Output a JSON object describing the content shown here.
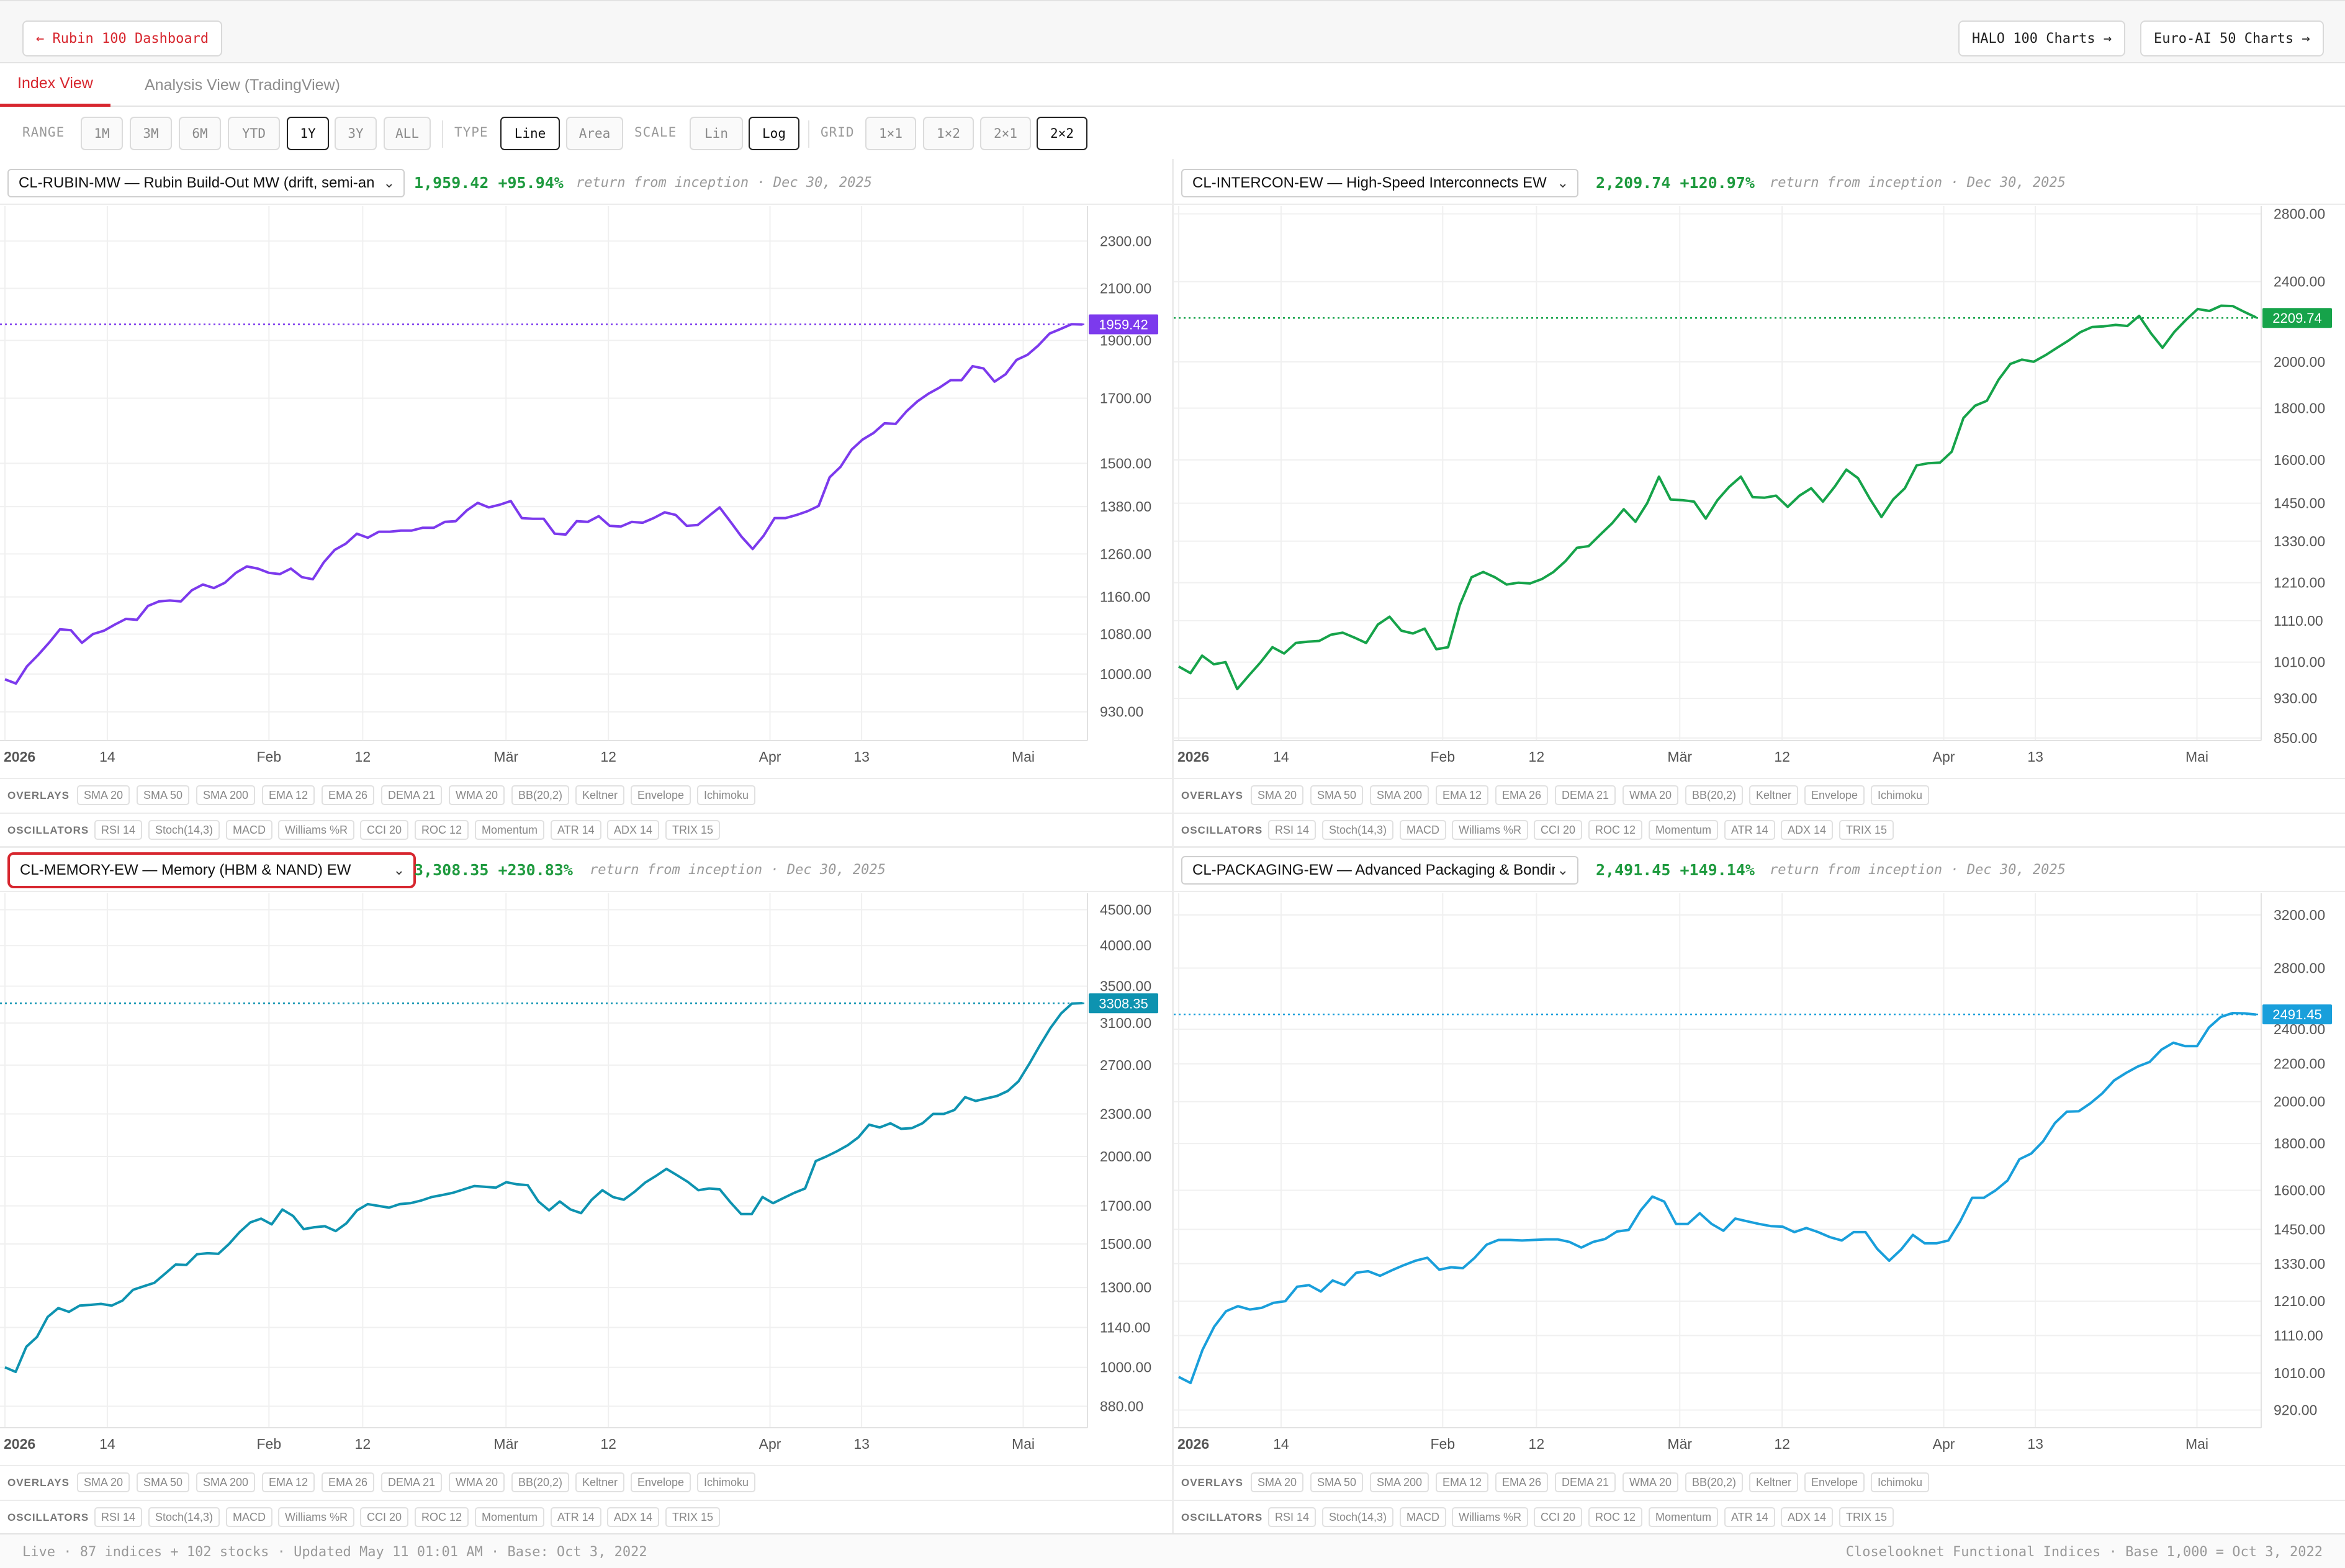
{
  "header": {
    "back_label": "← Rubin 100 Dashboard",
    "halo_label": "HALO 100 Charts →",
    "euro_label": "Euro-AI 50 Charts →"
  },
  "tabs": [
    {
      "label": "Index View",
      "active": true
    },
    {
      "label": "Analysis View (TradingView)",
      "active": false
    }
  ],
  "toolbar": {
    "range_label": "RANGE",
    "range_options": [
      "1M",
      "3M",
      "6M",
      "YTD",
      "1Y",
      "3Y",
      "ALL"
    ],
    "range_selected": "1Y",
    "type_label": "TYPE",
    "type_options": [
      "Line",
      "Area"
    ],
    "type_selected": "Line",
    "scale_label": "SCALE",
    "scale_options": [
      "Lin",
      "Log"
    ],
    "scale_selected": "Log",
    "grid_label": "GRID",
    "grid_options": [
      "1×1",
      "1×2",
      "2×1",
      "2×2"
    ],
    "grid_selected": "2×2"
  },
  "indicators": {
    "overlays_label": "OVERLAYS",
    "overlays": [
      "SMA 20",
      "SMA 50",
      "SMA 200",
      "EMA 12",
      "EMA 26",
      "DEMA 21",
      "WMA 20",
      "BB(20,2)",
      "Keltner",
      "Envelope",
      "Ichimoku"
    ],
    "oscillators_label": "OSCILLATORS",
    "oscillators": [
      "RSI 14",
      "Stoch(14,3)",
      "MACD",
      "Williams %R",
      "CCI 20",
      "ROC 12",
      "Momentum",
      "ATR 14",
      "ADX 14",
      "TRIX 15"
    ]
  },
  "panels": [
    {
      "selector": "CL-RUBIN-MW — Rubin Build-Out MW (drift, semi-an",
      "value": "1,959.42",
      "change": "+95.94%",
      "return_note": "return from inception · Dec 30, 2025",
      "price_tag": "1959.42",
      "color": "#7c3aed",
      "focused": false
    },
    {
      "selector": "CL-INTERCON-EW — High-Speed Interconnects EW",
      "value": "2,209.74",
      "change": "+120.97%",
      "return_note": "return from inception · Dec 30, 2025",
      "price_tag": "2209.74",
      "color": "#16a34a",
      "focused": false
    },
    {
      "selector": "CL-MEMORY-EW — Memory (HBM & NAND) EW",
      "value": "3,308.35",
      "change": "+230.83%",
      "return_note": "return from inception · Dec 30, 2025",
      "price_tag": "3308.35",
      "color": "#0e93b0",
      "focused": true
    },
    {
      "selector": "CL-PACKAGING-EW — Advanced Packaging & Bondin",
      "value": "2,491.45",
      "change": "+149.14%",
      "return_note": "return from inception · Dec 30, 2025",
      "price_tag": "2491.45",
      "color": "#199fdb",
      "focused": false
    }
  ],
  "chart_data": [
    {
      "type": "line",
      "scale": "log",
      "x_ticks": [
        "2026",
        "14",
        "Feb",
        "12",
        "Mär",
        "12",
        "Apr",
        "13",
        "Mai"
      ],
      "y_ticks": [
        930,
        1000,
        1080,
        1160,
        1260,
        1380,
        1500,
        1700,
        1900,
        2100,
        2300
      ],
      "ylim": [
        880,
        2460
      ],
      "last_value": 1959.42,
      "series": [
        {
          "values": [
            990,
            982,
            1015,
            1037,
            1062,
            1090,
            1088,
            1062,
            1080,
            1087,
            1100,
            1112,
            1110,
            1140,
            1150,
            1152,
            1150,
            1175,
            1188,
            1180,
            1192,
            1215,
            1230,
            1225,
            1215,
            1212,
            1225,
            1205,
            1200,
            1240,
            1270,
            1285,
            1310,
            1300,
            1315,
            1315,
            1318,
            1318,
            1325,
            1325,
            1340,
            1342,
            1370,
            1390,
            1378,
            1385,
            1395,
            1350,
            1348,
            1348,
            1310,
            1308,
            1342,
            1340,
            1355,
            1330,
            1328,
            1340,
            1338,
            1350,
            1365,
            1358,
            1330,
            1332,
            1355,
            1378,
            1340,
            1302,
            1272,
            1305,
            1350,
            1350,
            1358,
            1368,
            1382,
            1460,
            1490,
            1540,
            1570,
            1590,
            1620,
            1618,
            1658,
            1690,
            1715,
            1735,
            1760,
            1760,
            1808,
            1800,
            1755,
            1780,
            1830,
            1848,
            1882,
            1925,
            1942,
            1960,
            1959
          ]
        }
      ]
    },
    {
      "type": "line",
      "scale": "log",
      "x_ticks": [
        "2026",
        "14",
        "Feb",
        "12",
        "Mär",
        "12",
        "Apr",
        "13",
        "Mai"
      ],
      "y_ticks": [
        850,
        930,
        1010,
        1110,
        1210,
        1330,
        1450,
        1600,
        1800,
        2000,
        2400,
        2800
      ],
      "ylim": [
        845,
        2850
      ],
      "last_value": 2209.74,
      "series": [
        {
          "values": [
            1000,
            985,
            1025,
            1005,
            1010,
            950,
            980,
            1010,
            1045,
            1030,
            1055,
            1058,
            1060,
            1075,
            1080,
            1068,
            1055,
            1100,
            1120,
            1085,
            1078,
            1090,
            1040,
            1045,
            1150,
            1225,
            1240,
            1225,
            1205,
            1210,
            1208,
            1220,
            1240,
            1270,
            1310,
            1315,
            1350,
            1385,
            1430,
            1390,
            1450,
            1540,
            1462,
            1460,
            1455,
            1400,
            1460,
            1505,
            1540,
            1470,
            1468,
            1475,
            1438,
            1475,
            1500,
            1455,
            1505,
            1565,
            1535,
            1465,
            1405,
            1462,
            1500,
            1580,
            1588,
            1590,
            1630,
            1760,
            1810,
            1830,
            1920,
            1990,
            2010,
            2000,
            2030,
            2065,
            2100,
            2140,
            2165,
            2168,
            2175,
            2170,
            2220,
            2135,
            2065,
            2140,
            2200,
            2255,
            2245,
            2272,
            2270,
            2240,
            2212
          ]
        }
      ]
    },
    {
      "type": "line",
      "scale": "log",
      "x_ticks": [
        "2026",
        "14",
        "Feb",
        "12",
        "Mär",
        "12",
        "Apr",
        "13",
        "Mai"
      ],
      "y_ticks": [
        880,
        1000,
        1140,
        1300,
        1500,
        1700,
        2000,
        2300,
        2700,
        3100,
        3500,
        4000,
        4500
      ],
      "ylim": [
        820,
        4750
      ],
      "last_value": 3308.35,
      "series": [
        {
          "values": [
            1000,
            985,
            1070,
            1105,
            1180,
            1215,
            1200,
            1225,
            1228,
            1232,
            1225,
            1245,
            1290,
            1305,
            1320,
            1360,
            1402,
            1400,
            1450,
            1455,
            1452,
            1500,
            1560,
            1610,
            1630,
            1600,
            1680,
            1645,
            1575,
            1585,
            1590,
            1565,
            1605,
            1675,
            1710,
            1700,
            1690,
            1710,
            1715,
            1730,
            1750,
            1762,
            1775,
            1795,
            1815,
            1810,
            1805,
            1838,
            1825,
            1820,
            1725,
            1675,
            1725,
            1680,
            1660,
            1735,
            1790,
            1750,
            1735,
            1780,
            1835,
            1875,
            1920,
            1880,
            1840,
            1790,
            1800,
            1795,
            1720,
            1655,
            1655,
            1750,
            1715,
            1745,
            1775,
            1800,
            1970,
            2000,
            2035,
            2075,
            2130,
            2220,
            2200,
            2230,
            2190,
            2195,
            2230,
            2300,
            2300,
            2330,
            2430,
            2400,
            2420,
            2440,
            2480,
            2560,
            2710,
            2880,
            3050,
            3200,
            3305,
            3310
          ]
        }
      ]
    },
    {
      "type": "line",
      "scale": "log",
      "x_ticks": [
        "2026",
        "14",
        "Feb",
        "12",
        "Mär",
        "12",
        "Apr",
        "13",
        "Mai"
      ],
      "y_ticks": [
        920,
        1010,
        1110,
        1210,
        1330,
        1450,
        1600,
        1800,
        2000,
        2200,
        2400,
        2800,
        3200
      ],
      "ylim": [
        880,
        3380
      ],
      "last_value": 2491.45,
      "series": [
        {
          "values": [
            1000,
            985,
            1070,
            1135,
            1180,
            1195,
            1185,
            1190,
            1205,
            1210,
            1255,
            1260,
            1240,
            1275,
            1260,
            1300,
            1305,
            1290,
            1308,
            1325,
            1340,
            1350,
            1310,
            1318,
            1315,
            1350,
            1395,
            1412,
            1412,
            1410,
            1412,
            1414,
            1414,
            1405,
            1385,
            1405,
            1415,
            1442,
            1448,
            1520,
            1575,
            1555,
            1470,
            1470,
            1510,
            1470,
            1445,
            1490,
            1480,
            1470,
            1462,
            1460,
            1440,
            1455,
            1440,
            1422,
            1410,
            1440,
            1440,
            1380,
            1340,
            1378,
            1430,
            1400,
            1400,
            1410,
            1480,
            1570,
            1570,
            1600,
            1640,
            1730,
            1755,
            1810,
            1895,
            1950,
            1952,
            1992,
            2042,
            2110,
            2150,
            2185,
            2210,
            2280,
            2320,
            2300,
            2300,
            2410,
            2475,
            2500,
            2498,
            2490
          ]
        }
      ]
    }
  ],
  "footer": {
    "left": "Live · 87 indices + 102 stocks · Updated May 11 01:01 AM · Base: Oct 3, 2022",
    "right": "Closelooknet Functional Indices · Base 1,000 = Oct 3, 2022"
  }
}
